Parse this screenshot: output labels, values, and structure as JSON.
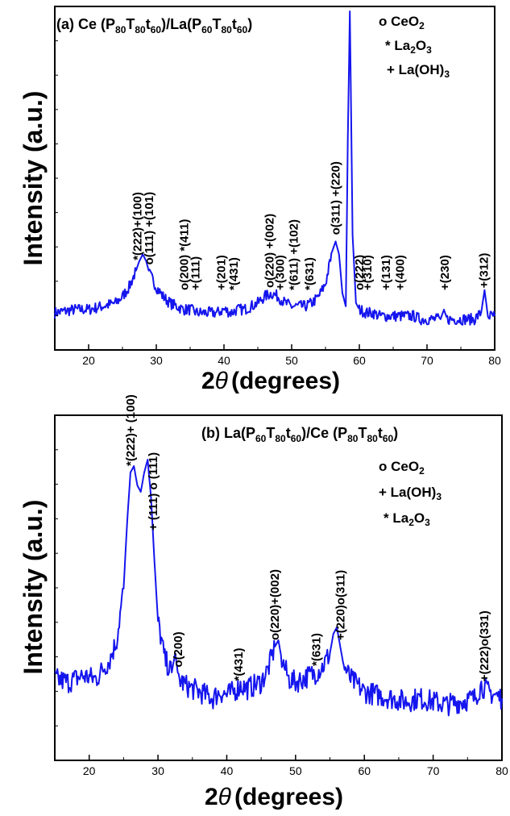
{
  "chart_data": [
    {
      "type": "line",
      "panel": "a",
      "title": {
        "prefix": "(a) Ce (P",
        "s1": "80",
        "m1": "T",
        "s2": "80",
        "m2": "t",
        "s3": "60",
        "m3": ")/La(P",
        "s4": "60",
        "m4": "T",
        "s5": "80",
        "m5": "t",
        "s6": "60",
        "m6": ")"
      },
      "ylabel": "Intensity (a.u.)",
      "xlabel": "(degrees)",
      "xlabel_symbol": "2",
      "xlabel_theta": "θ",
      "xlim": [
        15,
        80
      ],
      "ylim": [
        0,
        100
      ],
      "xticks": [
        "20",
        "30",
        "40",
        "50",
        "60",
        "70",
        "80"
      ],
      "grid": false,
      "line_color": "#1515ee",
      "legend": [
        {
          "label": "o CeO",
          "sub": "2"
        },
        {
          "label": "* La",
          "sub": "2",
          "tail": "O",
          "sub2": "3"
        },
        {
          "label": "+ La(OH)",
          "sub": "3"
        }
      ],
      "series": [
        {
          "x": [
            15,
            18,
            20,
            22,
            24,
            25,
            26,
            27,
            27.5,
            28,
            28.5,
            29,
            30,
            31,
            32,
            33,
            34,
            35,
            36,
            37,
            38,
            39,
            40,
            41,
            42,
            43,
            44,
            45,
            46,
            47,
            48,
            49,
            50,
            51,
            52,
            53,
            54,
            55,
            56,
            56.5,
            57,
            57.5,
            58,
            58.3,
            58.6,
            59,
            59.5,
            60,
            61,
            62,
            63,
            64,
            65,
            66,
            67,
            68,
            69,
            70,
            71,
            72,
            72.5,
            73,
            74,
            75,
            76,
            77,
            78,
            78.5,
            79,
            80
          ],
          "y": [
            6,
            7,
            7,
            8,
            9,
            11,
            14,
            19,
            22,
            24,
            22,
            18,
            14,
            11,
            9,
            8,
            7,
            7,
            6,
            6,
            6,
            6,
            7,
            6,
            7,
            7,
            8,
            9,
            11,
            12,
            11,
            9,
            8,
            8,
            8,
            9,
            11,
            15,
            25,
            28,
            24,
            12,
            8,
            60,
            99,
            30,
            9,
            7,
            6,
            6,
            5,
            5,
            5,
            5,
            5,
            5,
            4,
            4,
            4,
            4,
            7,
            4,
            4,
            4,
            4,
            4,
            6,
            13,
            5,
            5
          ]
        }
      ],
      "annotations": [
        {
          "text": "*(222)+(100)",
          "x": 27.2
        },
        {
          "text": "o(111) +(101)",
          "x": 28.9
        },
        {
          "text": "o(200) *(411)",
          "x": 34.1
        },
        {
          "text": "+(111)",
          "x": 35.8
        },
        {
          "text": "+(201)",
          "x": 39.6
        },
        {
          "text": "*(431)",
          "x": 41.4
        },
        {
          "text": "o(220) +(002)",
          "x": 46.7
        },
        {
          "text": "+(300)",
          "x": 48.3
        },
        {
          "text": "*(611) +(102)",
          "x": 50.3
        },
        {
          "text": "*(631)",
          "x": 52.6
        },
        {
          "text": "o(311) +(220)",
          "x": 56.5
        },
        {
          "text": "+(310)",
          "x": 61.2
        },
        {
          "text": "o(222)",
          "x": 60.0
        },
        {
          "text": "+(131)",
          "x": 63.9
        },
        {
          "text": "+(400)",
          "x": 66.0
        },
        {
          "text": "+(230)",
          "x": 72.6
        },
        {
          "text": "+(312)",
          "x": 78.4
        }
      ]
    },
    {
      "type": "line",
      "panel": "b",
      "title": {
        "prefix": "(b) La(P",
        "s1": "60",
        "m1": "T",
        "s2": "80",
        "m2": "t",
        "s3": "60",
        "m3": ")/Ce (P",
        "s4": "80",
        "m4": "T",
        "s5": "80",
        "m5": "t",
        "s6": "60",
        "m6": ")"
      },
      "ylabel": "Intensity (a.u.)",
      "xlabel": "(degrees)",
      "xlabel_symbol": "2",
      "xlabel_theta": "θ",
      "xlim": [
        15,
        80
      ],
      "ylim": [
        0,
        100
      ],
      "xticks": [
        "20",
        "30",
        "40",
        "50",
        "60",
        "70",
        "80"
      ],
      "grid": false,
      "line_color": "#1515ee",
      "legend": [
        {
          "label": "o CeO",
          "sub": "2"
        },
        {
          "label": "+ La(OH)",
          "sub": "3"
        },
        {
          "label": "* La",
          "sub": "2",
          "tail": "O",
          "sub2": "3"
        }
      ],
      "series": [
        {
          "x": [
            15,
            17,
            19,
            21,
            22,
            23,
            24,
            25,
            25.5,
            26,
            26.5,
            27,
            27.5,
            28,
            28.5,
            29,
            29.5,
            30,
            31,
            32,
            32.5,
            33,
            34,
            35,
            36,
            37,
            38,
            39,
            40,
            41,
            42,
            43,
            44,
            45,
            46,
            47,
            47.5,
            48,
            49,
            50,
            51,
            52,
            53,
            54,
            55,
            55.5,
            56,
            56.5,
            57,
            58,
            59,
            60,
            62,
            64,
            66,
            68,
            70,
            72,
            74,
            76,
            77,
            78,
            80
          ],
          "y": [
            22,
            21,
            23,
            22,
            25,
            28,
            34,
            50,
            70,
            86,
            88,
            82,
            80,
            86,
            90,
            78,
            58,
            40,
            28,
            24,
            30,
            22,
            20,
            19,
            18,
            17,
            16,
            18,
            17,
            18,
            20,
            19,
            20,
            21,
            25,
            32,
            34,
            28,
            22,
            21,
            22,
            23,
            24,
            26,
            30,
            36,
            38,
            32,
            26,
            22,
            20,
            18,
            17,
            16,
            15,
            16,
            15,
            14,
            15,
            16,
            20,
            18,
            16
          ]
        }
      ],
      "annotations": [
        {
          "text": "*(222)+ (100)",
          "x": 26.0
        },
        {
          "text": "+ (111) o (111)",
          "x": 29.3
        },
        {
          "text": "o(200)",
          "x": 32.9
        },
        {
          "text": "*(431)",
          "x": 41.7
        },
        {
          "text": "o(220)+(002)",
          "x": 47.0
        },
        {
          "text": "*(631)",
          "x": 53.0
        },
        {
          "text": "+(220)o(311)",
          "x": 56.5
        },
        {
          "text": "+(222)o(331)",
          "x": 77.4
        }
      ]
    }
  ]
}
